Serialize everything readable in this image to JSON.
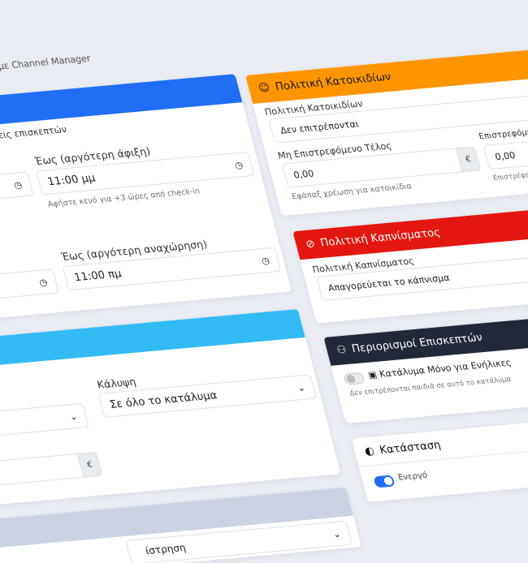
{
  "page": {
    "subtitle_fragment": "μό με Channel Manager"
  },
  "checkin_card": {
    "header_color": "#1f6ef5",
    "description_fragment": "σεις επισκεπτών",
    "arrival_to_label": "Έως (αργότερη άφιξη)",
    "arrival_to_value": "11:00 μμ",
    "arrival_hint": "Αφήστε κενό για +3 ώρες από check-in",
    "departure_to_label": "Έως (αργότερη αναχώρηση)",
    "departure_to_value": "11:00 πμ"
  },
  "coverage_card": {
    "header_color": "#33bbf5",
    "coverage_label": "Κάλυψη",
    "coverage_value": "Σε όλο το κατάλυμα",
    "currency": "€"
  },
  "bottom_card": {
    "header_color": "#cbd3e3",
    "select_fragment": "ίστρηση"
  },
  "pets_card": {
    "header_color": "#ff9500",
    "title": "Πολιτική Κατοικιδίων",
    "policy_label": "Πολιτική Κατοικιδίων",
    "policy_value": "Δεν επιτρέπονται",
    "fee_label": "Μη Επιστρεφόμενο Τέλος",
    "fee_value": "0,00",
    "currency": "€",
    "fee_hint": "Εφάπαξ χρέωση για κατοικίδια",
    "deposit_label": "Επιστρεφόμενη Εγγύηση",
    "deposit_value": "0,00",
    "deposit_hint": "Επιστρέφεται αν δεν υ"
  },
  "smoking_card": {
    "header_color": "#e3170f",
    "title": "Πολιτική Καπνίσματος",
    "policy_label": "Πολιτική Καπνίσματος",
    "policy_value": "Απαγορεύεται το κάπνισμα"
  },
  "guests_card": {
    "header_color": "#212837",
    "title": "Περιορισμοί Επισκεπτών",
    "adults_only_label": "Κατάλυμα Μόνο για Ενήλικες",
    "adults_only_on": false,
    "adults_only_hint": "Δεν επιτρέπονται παιδιά σε αυτό το κατάλυμα"
  },
  "status_card": {
    "title": "Κατάσταση",
    "active_label": "Ενεργό",
    "active_on": true
  }
}
